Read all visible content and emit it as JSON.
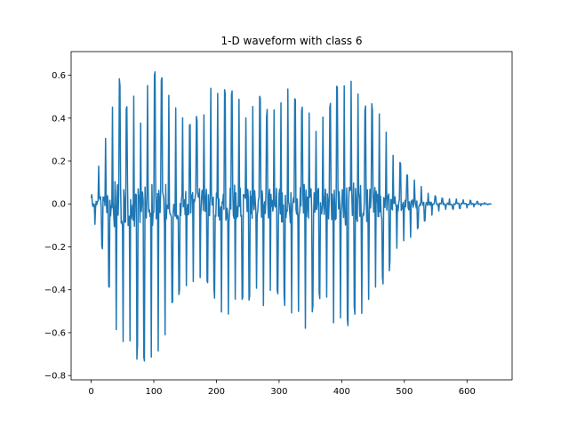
{
  "chart_data": {
    "type": "line",
    "title": "1-D waveform with class 6",
    "xlabel": "",
    "ylabel": "",
    "xlim": [
      -32,
      672
    ],
    "ylim": [
      -0.82,
      0.71
    ],
    "grid": false,
    "xticks": [
      0,
      100,
      200,
      300,
      400,
      500,
      600
    ],
    "xtick_labels": [
      "0",
      "100",
      "200",
      "300",
      "400",
      "500",
      "600"
    ],
    "yticks": [
      -0.8,
      -0.6,
      -0.4,
      -0.2,
      0.0,
      0.2,
      0.4,
      0.6
    ],
    "ytick_labels": [
      "−0.8",
      "−0.6",
      "−0.4",
      "−0.2",
      "0.0",
      "0.2",
      "0.4",
      "0.6"
    ],
    "series": [
      {
        "color": "#1f77b4",
        "samples": 640,
        "sample_rate_period": 11.2,
        "envelope_peaks": [
          [
            0,
            0.03
          ],
          [
            10,
            0.18
          ],
          [
            20,
            0.3
          ],
          [
            30,
            0.42
          ],
          [
            37,
            0.6
          ],
          [
            43,
            0.64
          ],
          [
            55,
            0.5
          ],
          [
            70,
            0.55
          ],
          [
            80,
            0.42
          ],
          [
            87,
            0.62
          ],
          [
            95,
            0.61
          ],
          [
            105,
            0.62
          ],
          [
            112,
            0.6
          ],
          [
            120,
            0.62
          ],
          [
            130,
            0.52
          ],
          [
            140,
            0.42
          ],
          [
            155,
            0.38
          ],
          [
            175,
            0.45
          ],
          [
            190,
            0.55
          ],
          [
            205,
            0.62
          ],
          [
            218,
            0.58
          ],
          [
            235,
            0.52
          ],
          [
            250,
            0.45
          ],
          [
            265,
            0.55
          ],
          [
            278,
            0.45
          ],
          [
            292,
            0.5
          ],
          [
            305,
            0.55
          ],
          [
            320,
            0.58
          ],
          [
            335,
            0.5
          ],
          [
            350,
            0.42
          ],
          [
            360,
            0.38
          ],
          [
            375,
            0.45
          ],
          [
            385,
            0.56
          ],
          [
            398,
            0.55
          ],
          [
            412,
            0.6
          ],
          [
            425,
            0.55
          ],
          [
            440,
            0.5
          ],
          [
            455,
            0.45
          ],
          [
            468,
            0.38
          ],
          [
            480,
            0.25
          ],
          [
            492,
            0.2
          ],
          [
            505,
            0.15
          ],
          [
            520,
            0.1
          ],
          [
            540,
            0.05
          ],
          [
            560,
            0.03
          ],
          [
            600,
            0.02
          ],
          [
            620,
            0.01
          ],
          [
            640,
            0.0
          ]
        ],
        "envelope_troughs": [
          [
            0,
            -0.03
          ],
          [
            10,
            -0.15
          ],
          [
            20,
            -0.25
          ],
          [
            30,
            -0.45
          ],
          [
            37,
            -0.62
          ],
          [
            43,
            -0.7
          ],
          [
            55,
            -0.65
          ],
          [
            70,
            -0.72
          ],
          [
            80,
            -0.75
          ],
          [
            87,
            -0.73
          ],
          [
            95,
            -0.72
          ],
          [
            105,
            -0.74
          ],
          [
            112,
            -0.72
          ],
          [
            120,
            -0.6
          ],
          [
            130,
            -0.52
          ],
          [
            140,
            -0.45
          ],
          [
            155,
            -0.4
          ],
          [
            170,
            -0.4
          ],
          [
            190,
            -0.42
          ],
          [
            205,
            -0.5
          ],
          [
            218,
            -0.55
          ],
          [
            235,
            -0.5
          ],
          [
            250,
            -0.45
          ],
          [
            265,
            -0.45
          ],
          [
            278,
            -0.5
          ],
          [
            292,
            -0.4
          ],
          [
            305,
            -0.45
          ],
          [
            320,
            -0.55
          ],
          [
            335,
            -0.6
          ],
          [
            350,
            -0.56
          ],
          [
            360,
            -0.5
          ],
          [
            375,
            -0.45
          ],
          [
            385,
            -0.55
          ],
          [
            398,
            -0.6
          ],
          [
            412,
            -0.58
          ],
          [
            425,
            -0.55
          ],
          [
            440,
            -0.48
          ],
          [
            455,
            -0.42
          ],
          [
            468,
            -0.38
          ],
          [
            480,
            -0.28
          ],
          [
            492,
            -0.22
          ],
          [
            505,
            -0.18
          ],
          [
            520,
            -0.12
          ],
          [
            540,
            -0.06
          ],
          [
            560,
            -0.03
          ],
          [
            600,
            -0.02
          ],
          [
            620,
            -0.01
          ],
          [
            640,
            0.0
          ]
        ]
      }
    ]
  }
}
